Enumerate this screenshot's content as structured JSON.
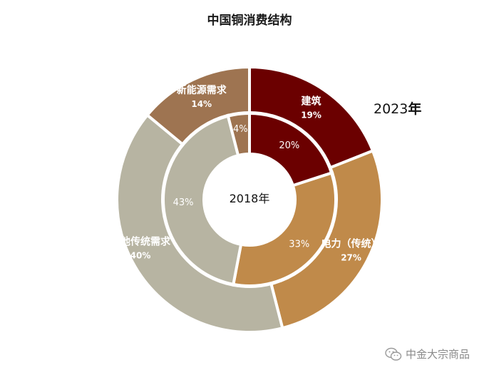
{
  "title": "中国铜消费结构",
  "chart_data": [
    {
      "type": "pie",
      "ring": "outer",
      "label": "2023年",
      "slices": [
        {
          "name": "建筑",
          "value": 19,
          "label": "19%",
          "color": "#6b0000"
        },
        {
          "name": "电力（传统）",
          "value": 27,
          "label": "27%",
          "color": "#c08a4a"
        },
        {
          "name": "其他传统需求",
          "value": 40,
          "label": "40%",
          "color": "#b7b4a2"
        },
        {
          "name": "新能源需求",
          "value": 14,
          "label": "14%",
          "color": "#9e7451"
        }
      ]
    },
    {
      "type": "pie",
      "ring": "inner",
      "label": "2018年",
      "slices": [
        {
          "value": 20,
          "label": "20%",
          "color": "#6b0000"
        },
        {
          "value": 33,
          "label": "33%",
          "color": "#c08a4a"
        },
        {
          "value": 43,
          "label": "43%",
          "color": "#b7b4a2"
        },
        {
          "value": 4,
          "label": "4%",
          "color": "#9e7451"
        }
      ]
    }
  ],
  "outer_year_prefix": "2023",
  "outer_year_suffix": "年",
  "watermark": "中金大宗商品"
}
